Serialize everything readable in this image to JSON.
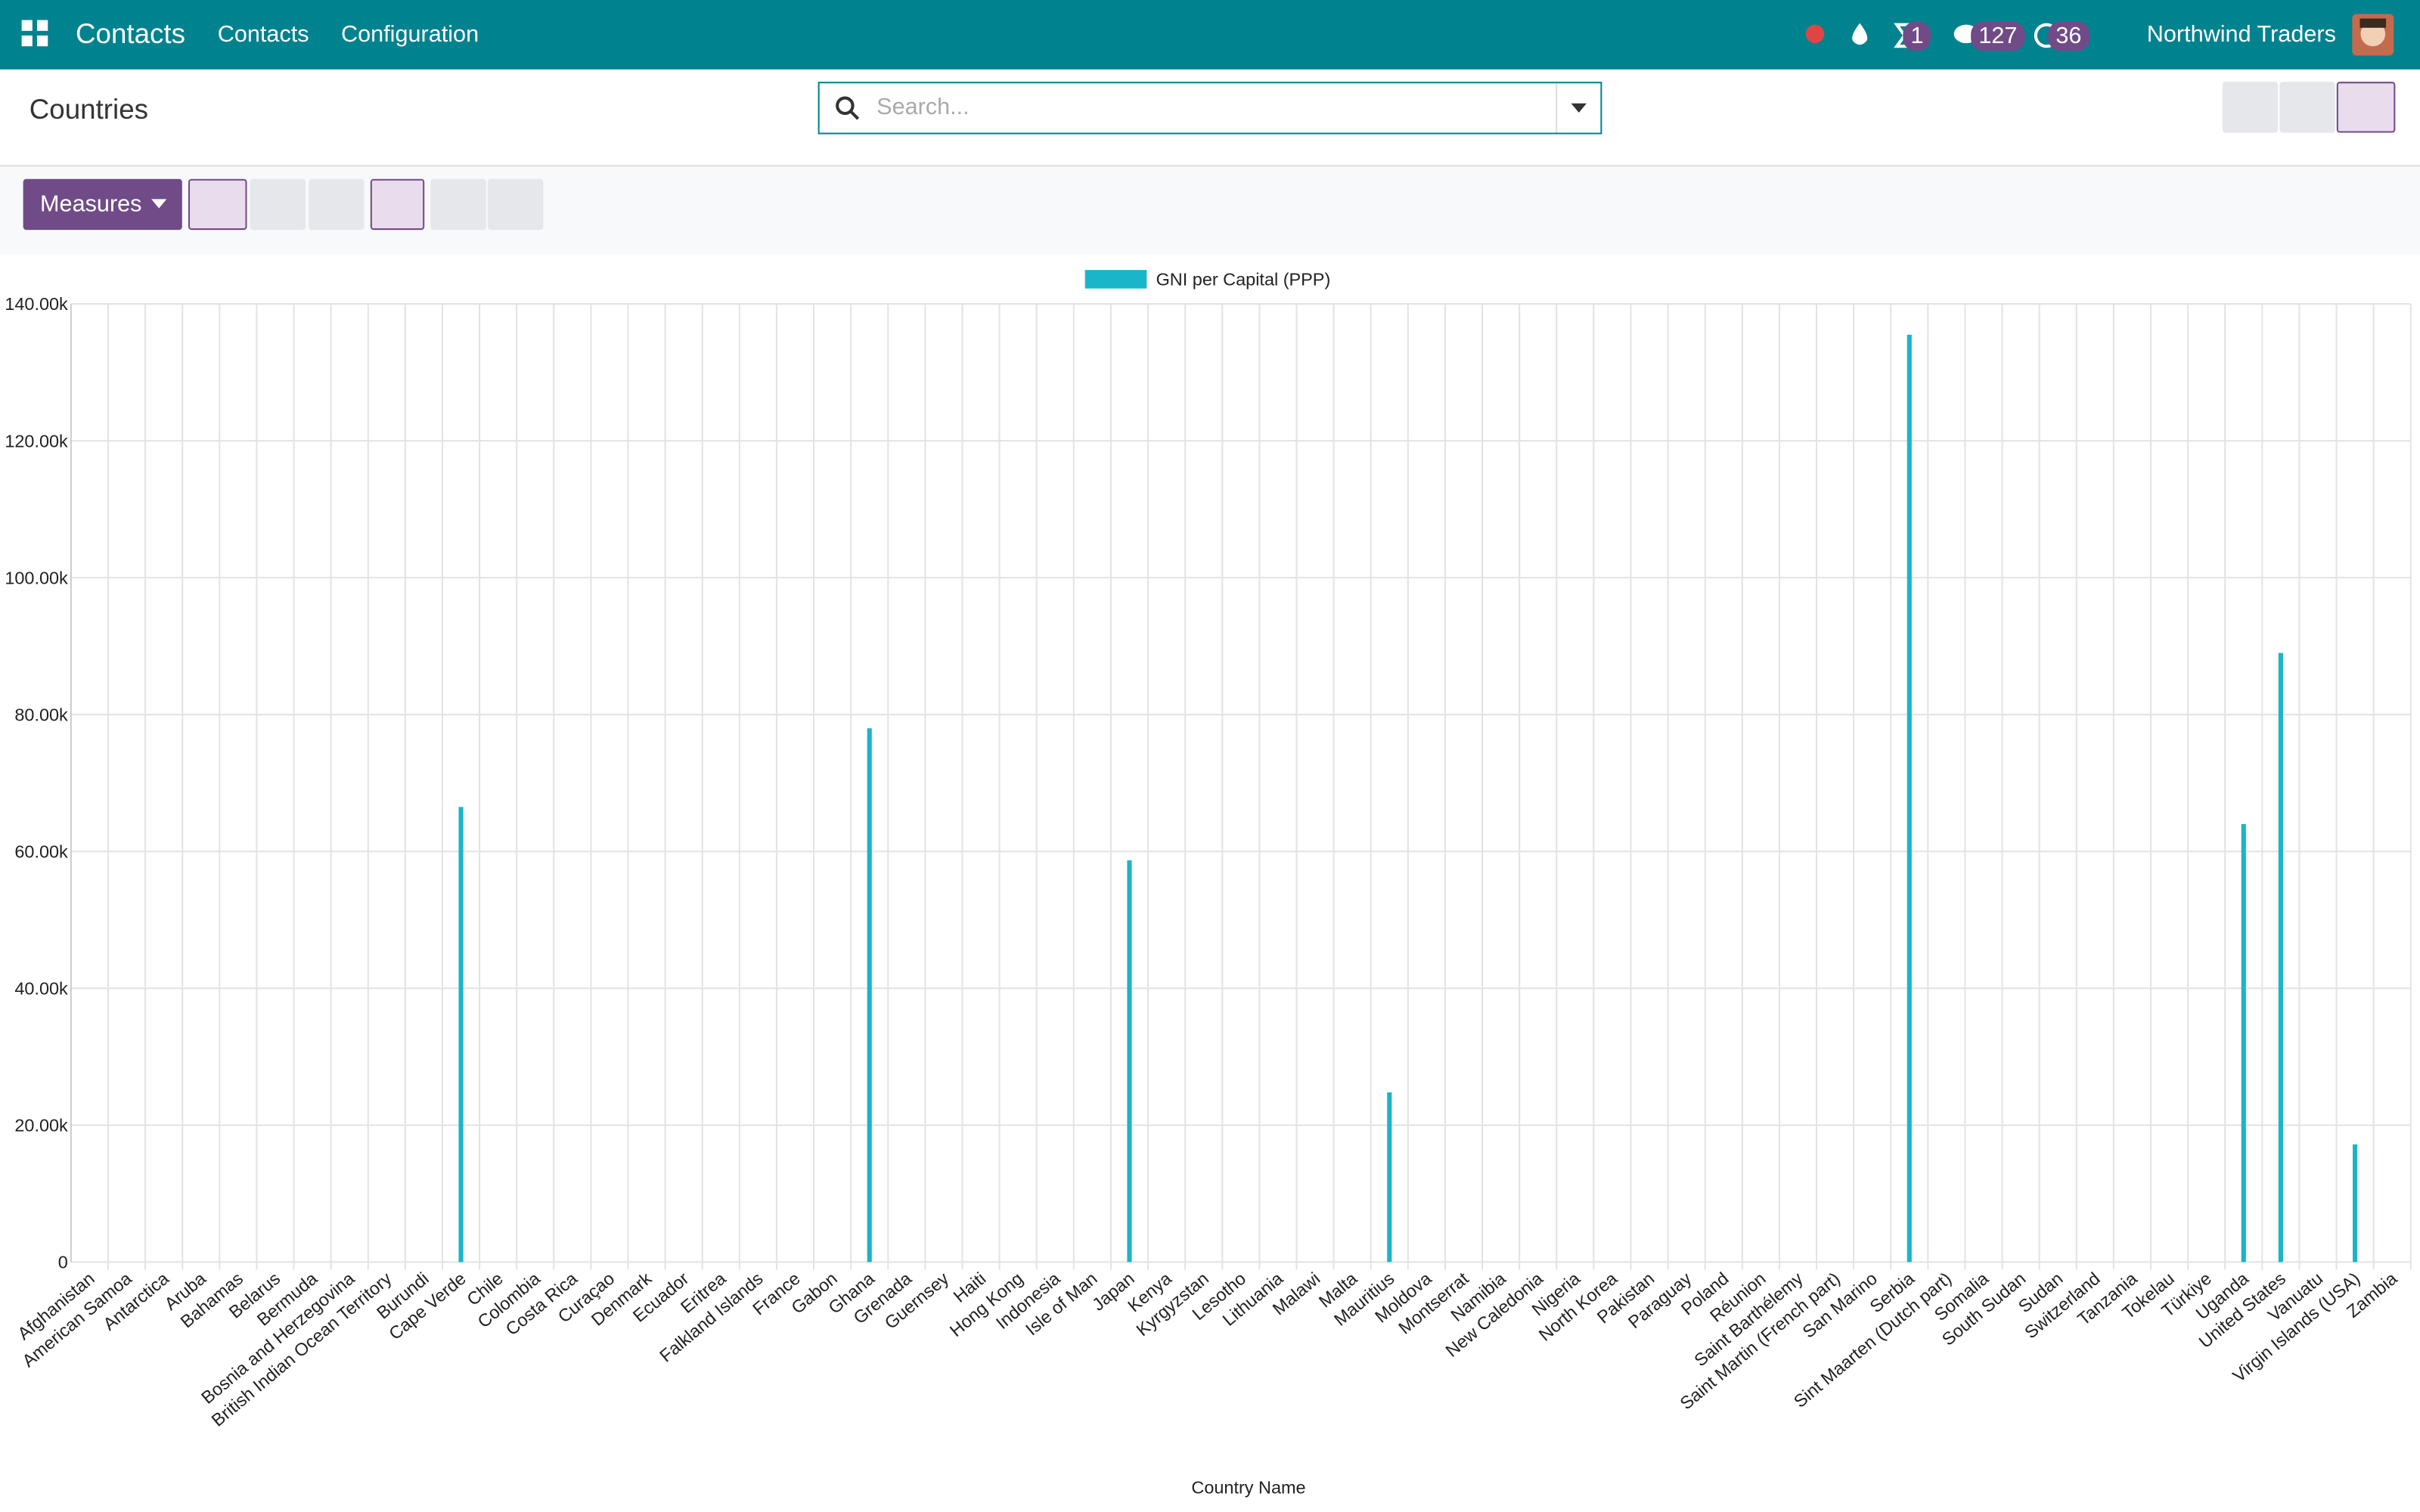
{
  "nav": {
    "app": "Contacts",
    "menu": [
      "Contacts",
      "Configuration"
    ],
    "badges": [
      "1",
      "127",
      "36"
    ],
    "company": "Northwind Traders"
  },
  "control": {
    "breadcrumb": "Countries",
    "search_placeholder": "Search...",
    "measures": "Measures"
  },
  "chart_data": {
    "type": "bar",
    "categories": [
      "Afghanistan",
      "American Samoa",
      "Antarctica",
      "Aruba",
      "Bahamas",
      "Belarus",
      "Bermuda",
      "Bosnia and Herzegovina",
      "British Indian Ocean Territory",
      "Burundi",
      "Cape Verde",
      "Chile",
      "Colombia",
      "Costa Rica",
      "Curaçao",
      "Denmark",
      "Ecuador",
      "Eritrea",
      "Falkland Islands",
      "France",
      "Gabon",
      "Ghana",
      "Grenada",
      "Guernsey",
      "Haiti",
      "Hong Kong",
      "Indonesia",
      "Isle of Man",
      "Japan",
      "Kenya",
      "Kyrgyzstan",
      "Lesotho",
      "Lithuania",
      "Malawi",
      "Malta",
      "Mauritius",
      "Moldova",
      "Montserrat",
      "Namibia",
      "New Caledonia",
      "Nigeria",
      "North Korea",
      "Pakistan",
      "Paraguay",
      "Poland",
      "Réunion",
      "Saint Barthélemy",
      "Saint Martin (French part)",
      "San Marino",
      "Serbia",
      "Sint Maarten (Dutch part)",
      "Somalia",
      "South Sudan",
      "Sudan",
      "Switzerland",
      "Tanzania",
      "Tokelau",
      "Türkiye",
      "Uganda",
      "United States",
      "Vanuatu",
      "Virgin Islands (USA)",
      "Zambia"
    ],
    "series": [
      {
        "name": "GNI per Capital (PPP)",
        "color": "#1ab5c8",
        "values": [
          null,
          null,
          null,
          null,
          null,
          null,
          null,
          null,
          null,
          null,
          66500,
          null,
          null,
          null,
          null,
          null,
          null,
          null,
          null,
          null,
          null,
          78000,
          null,
          null,
          null,
          null,
          null,
          null,
          58700,
          null,
          null,
          null,
          null,
          null,
          null,
          24800,
          null,
          null,
          null,
          null,
          null,
          null,
          null,
          null,
          null,
          null,
          null,
          null,
          null,
          135500,
          null,
          null,
          null,
          null,
          null,
          null,
          null,
          null,
          64000,
          89000,
          null,
          17200,
          null
        ]
      }
    ],
    "ylim": [
      0,
      140000
    ],
    "yticks": [
      0,
      {
        "value": 20000,
        "label": "20.00k"
      },
      {
        "value": 40000,
        "label": "40.00k"
      },
      {
        "value": 60000,
        "label": "60.00k"
      },
      {
        "value": 80000,
        "label": "80.00k"
      },
      {
        "value": 100000,
        "label": "100.00k"
      },
      {
        "value": 120000,
        "label": "120.00k"
      },
      {
        "value": 140000,
        "label": "140.00k"
      }
    ],
    "xlabel": "Country Name",
    "grid": true,
    "legend": "top"
  }
}
